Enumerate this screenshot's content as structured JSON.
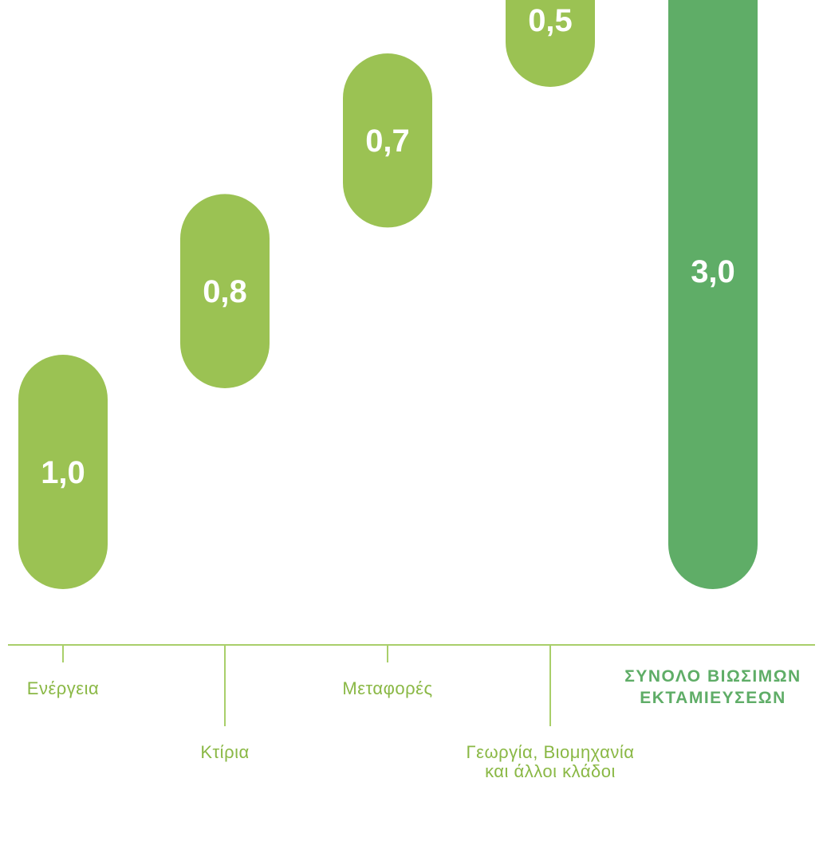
{
  "colors": {
    "segment": "#9bc253",
    "total": "#5fad67",
    "axis": "#a9cf6a",
    "label": "#8ab845",
    "total_label": "#5fad67",
    "value_text": "#ffffff"
  },
  "chart_data": {
    "type": "bar",
    "subtype": "waterfall",
    "title": "",
    "xlabel": "",
    "ylabel": "",
    "ylim": [
      0,
      3.0
    ],
    "grid": false,
    "categories": [
      "Ενέργεια",
      "Κτίρια",
      "Μεταφορές",
      "Γεωργία, Βιομηχανία και άλλοι κλάδοι",
      "ΣΥΝΟΛΟ ΒΙΩΣΙΜΩΝ ΕΚΤΑΜΙΕΥΣΕΩΝ"
    ],
    "values": [
      1.0,
      0.8,
      0.7,
      0.5,
      3.0
    ],
    "value_labels": [
      "1,0",
      "0,8",
      "0,7",
      "0,5",
      "3,0"
    ],
    "is_total": [
      false,
      false,
      false,
      false,
      true
    ],
    "label_lines": [
      [
        "Ενέργεια"
      ],
      [
        "Κτίρια"
      ],
      [
        "Μεταφορές"
      ],
      [
        "Γεωργία, Βιομηχανία",
        "και άλλοι κλάδοι"
      ],
      [
        "ΣΥΝΟΛΟ ΒΙΩΣΙΜΩΝ",
        "ΕΚΤΑΜΙΕΥΣΕΩΝ"
      ]
    ]
  }
}
